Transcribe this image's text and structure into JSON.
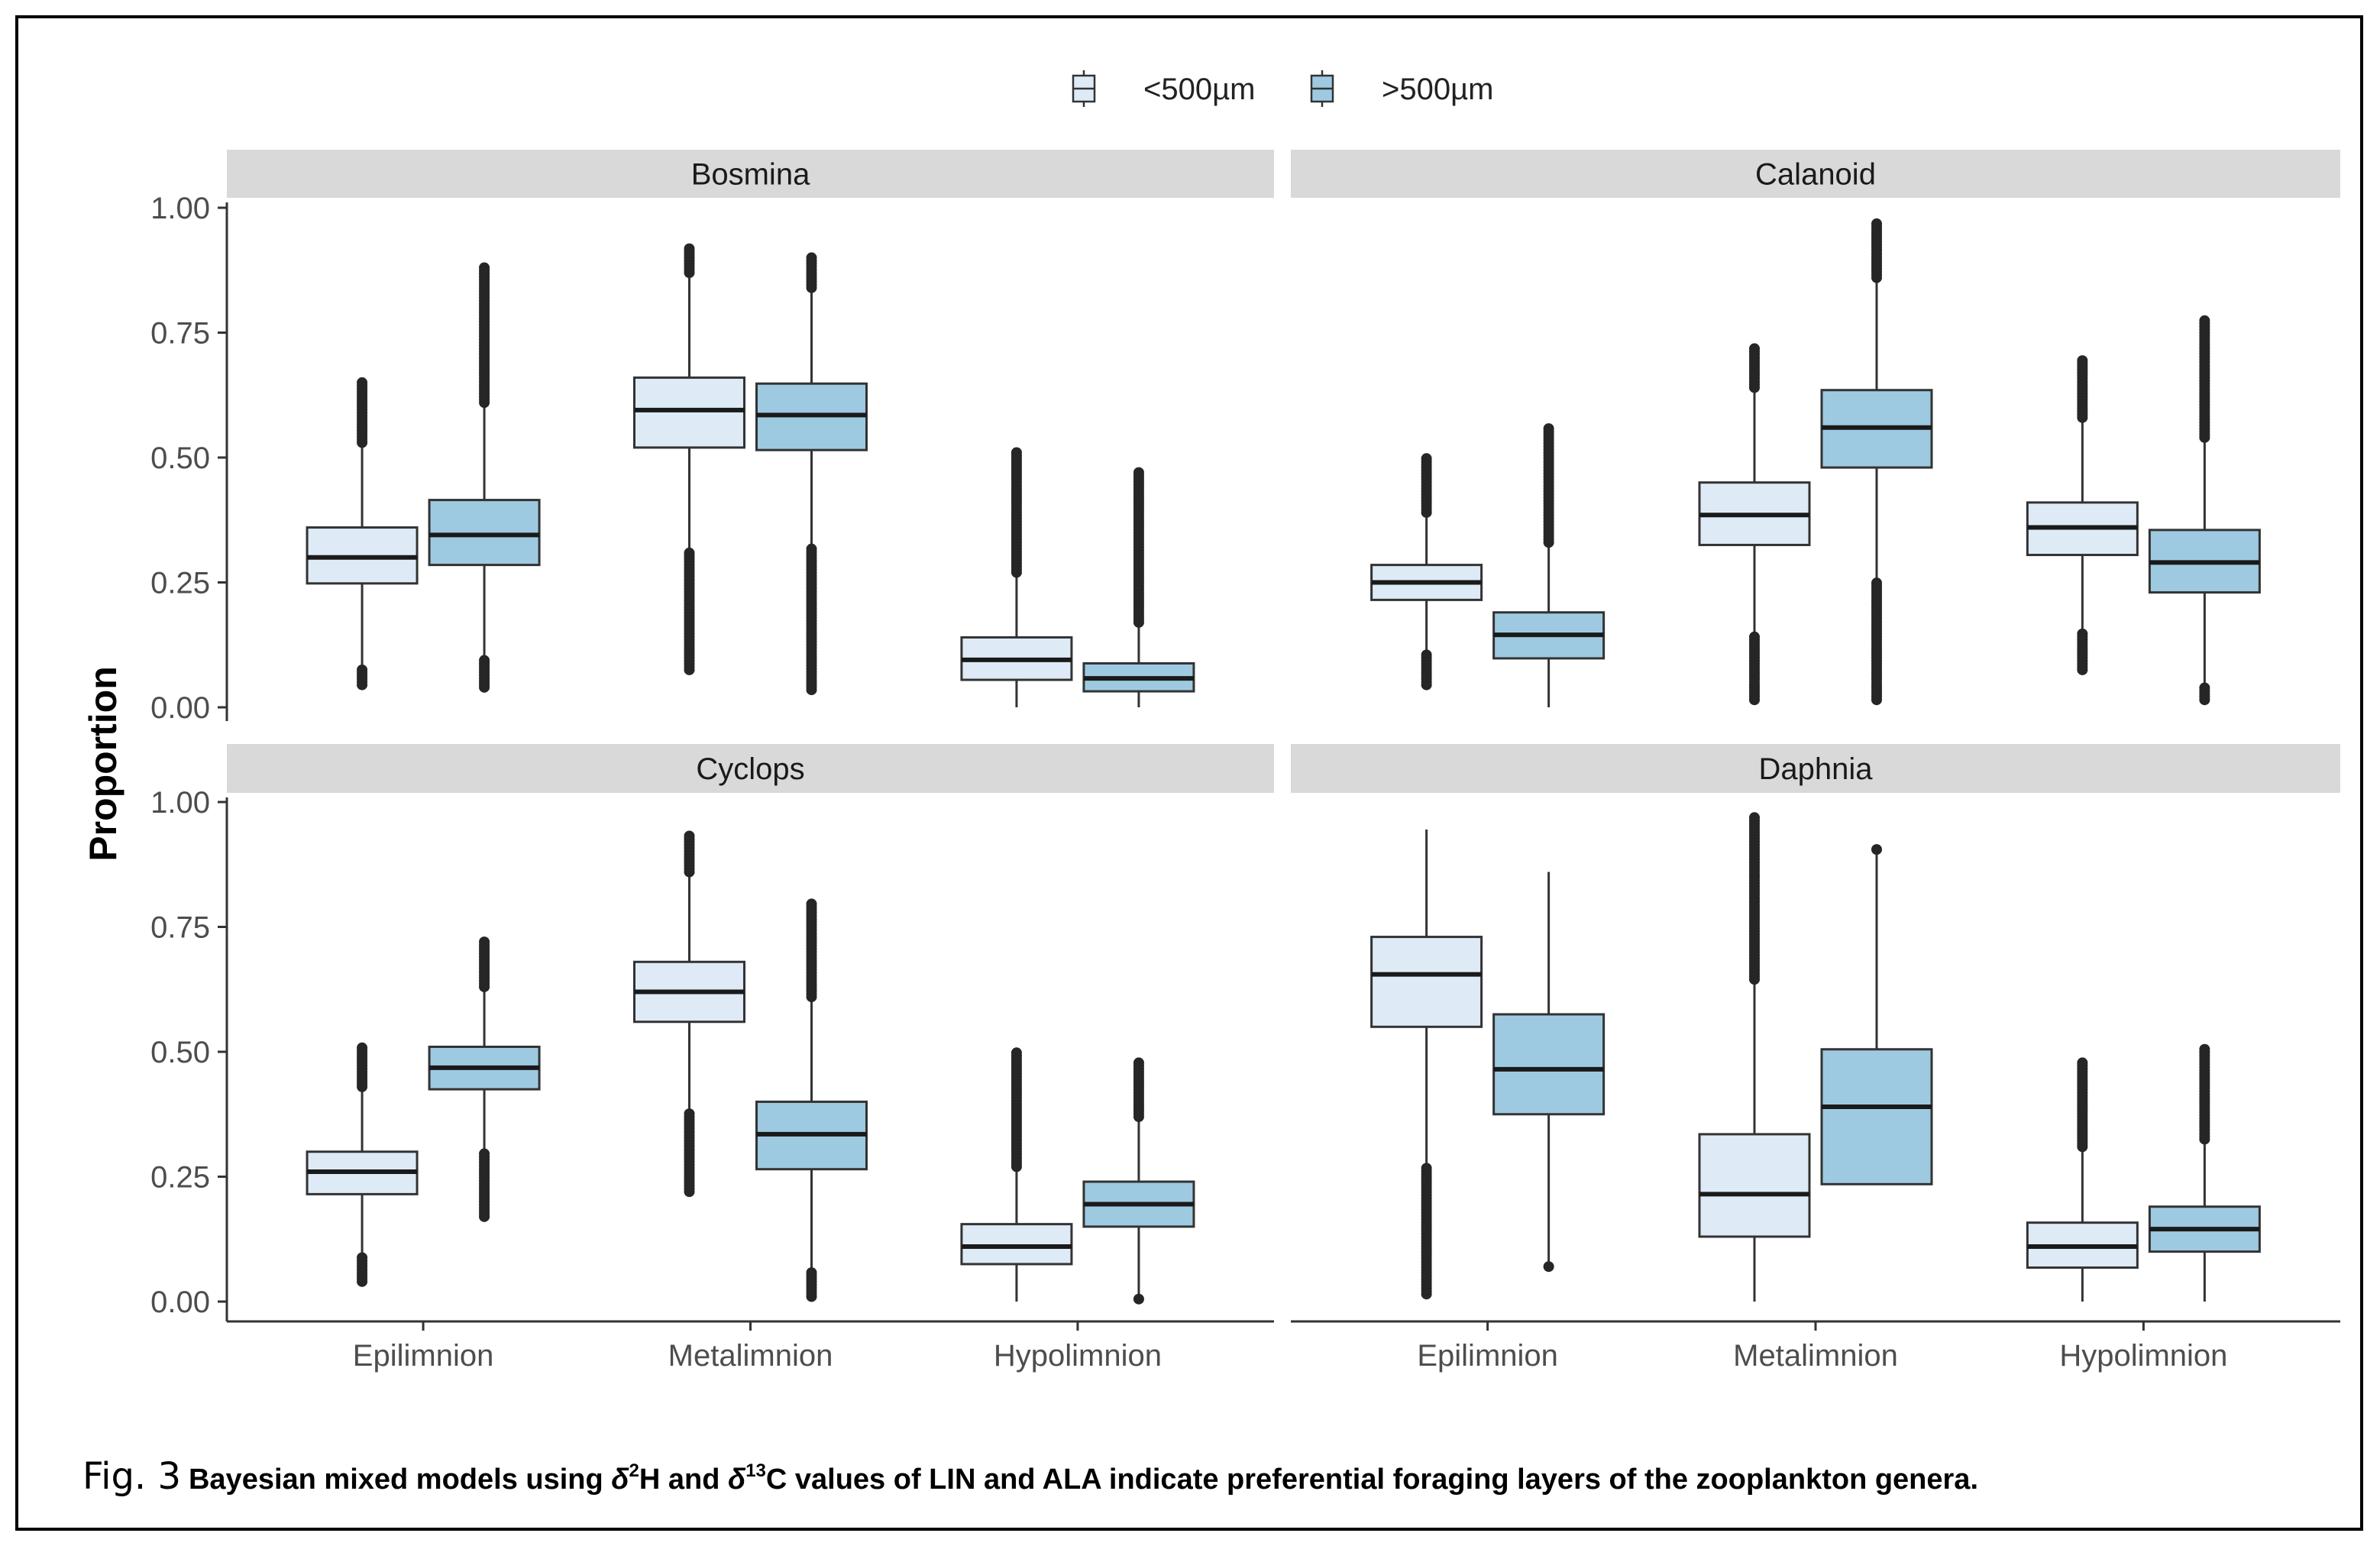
{
  "chart_data": {
    "type": "boxplot",
    "ylabel": "Proportion",
    "ylim": [
      0,
      1
    ],
    "yticks": [
      "0.00",
      "0.25",
      "0.50",
      "0.75",
      "1.00"
    ],
    "categories": [
      "Epilimnion",
      "Metalimnion",
      "Hypolimnion"
    ],
    "legend": {
      "position": "top",
      "entries": [
        {
          "label": "<500µm",
          "color": "#deebf7"
        },
        {
          "label": ">500µm",
          "color": "#9ecae1"
        }
      ]
    },
    "panels": [
      {
        "title": "Bosmina",
        "groups": [
          {
            "category": "Epilimnion",
            "series": "<500µm",
            "min": 0.045,
            "q1": 0.248,
            "median": 0.3,
            "q3": 0.36,
            "max": 0.655,
            "outliers_low": [
              0.045,
              0.08
            ],
            "outliers_high": [
              0.53,
              0.655
            ]
          },
          {
            "category": "Epilimnion",
            "series": ">500µm",
            "min": 0.04,
            "q1": 0.285,
            "median": 0.345,
            "q3": 0.415,
            "max": 0.88,
            "outliers_low": [
              0.04,
              0.095
            ],
            "outliers_high": [
              0.61,
              0.88
            ]
          },
          {
            "category": "Metalimnion",
            "series": "<500µm",
            "min": 0.075,
            "q1": 0.52,
            "median": 0.595,
            "q3": 0.66,
            "max": 0.92,
            "outliers_low": [
              0.075,
              0.135,
              0.31
            ],
            "outliers_high": [
              0.87,
              0.92
            ]
          },
          {
            "category": "Metalimnion",
            "series": ">500µm",
            "min": 0.035,
            "q1": 0.515,
            "median": 0.585,
            "q3": 0.648,
            "max": 0.905,
            "outliers_low": [
              0.035,
              0.32
            ],
            "outliers_high": [
              0.84,
              0.905
            ]
          },
          {
            "category": "Hypolimnion",
            "series": "<500µm",
            "min": 0.0,
            "q1": 0.055,
            "median": 0.095,
            "q3": 0.14,
            "max": 0.515,
            "outliers_low": [],
            "outliers_high": [
              0.27,
              0.515
            ]
          },
          {
            "category": "Hypolimnion",
            "series": ">500µm",
            "min": 0.0,
            "q1": 0.032,
            "median": 0.058,
            "q3": 0.088,
            "max": 0.47,
            "outliers_low": [],
            "outliers_high": [
              0.17,
              0.47
            ]
          }
        ]
      },
      {
        "title": "Calanoid",
        "groups": [
          {
            "category": "Epilimnion",
            "series": "<500µm",
            "min": 0.045,
            "q1": 0.215,
            "median": 0.25,
            "q3": 0.285,
            "max": 0.5,
            "outliers_low": [
              0.045,
              0.105
            ],
            "outliers_high": [
              0.39,
              0.46,
              0.5
            ]
          },
          {
            "category": "Epilimnion",
            "series": ">500µm",
            "min": 0.0,
            "q1": 0.098,
            "median": 0.145,
            "q3": 0.19,
            "max": 0.56,
            "outliers_low": [],
            "outliers_high": [
              0.33,
              0.56
            ]
          },
          {
            "category": "Metalimnion",
            "series": "<500µm",
            "min": 0.015,
            "q1": 0.325,
            "median": 0.385,
            "q3": 0.45,
            "max": 0.72,
            "outliers_low": [
              0.015,
              0.075,
              0.145
            ],
            "outliers_high": [
              0.64,
              0.72
            ]
          },
          {
            "category": "Metalimnion",
            "series": ">500µm",
            "min": 0.015,
            "q1": 0.48,
            "median": 0.56,
            "q3": 0.635,
            "max": 0.97,
            "outliers_low": [
              0.015,
              0.25
            ],
            "outliers_high": [
              0.86,
              0.93,
              0.97
            ]
          },
          {
            "category": "Hypolimnion",
            "series": "<500µm",
            "min": 0.075,
            "q1": 0.305,
            "median": 0.36,
            "q3": 0.41,
            "max": 0.695,
            "outliers_low": [
              0.075,
              0.15
            ],
            "outliers_high": [
              0.58,
              0.66,
              0.695
            ]
          },
          {
            "category": "Hypolimnion",
            "series": ">500µm",
            "min": 0.015,
            "q1": 0.23,
            "median": 0.29,
            "q3": 0.355,
            "max": 0.775,
            "outliers_low": [
              0.015,
              0.04
            ],
            "outliers_high": [
              0.54,
              0.775
            ]
          }
        ]
      },
      {
        "title": "Cyclops",
        "groups": [
          {
            "category": "Epilimnion",
            "series": "<500µm",
            "min": 0.04,
            "q1": 0.215,
            "median": 0.26,
            "q3": 0.3,
            "max": 0.51,
            "outliers_low": [
              0.04,
              0.09
            ],
            "outliers_high": [
              0.43,
              0.51
            ]
          },
          {
            "category": "Epilimnion",
            "series": ">500µm",
            "min": 0.17,
            "q1": 0.425,
            "median": 0.468,
            "q3": 0.51,
            "max": 0.72,
            "outliers_low": [
              0.17,
              0.3
            ],
            "outliers_high": [
              0.63,
              0.72
            ]
          },
          {
            "category": "Metalimnion",
            "series": "<500µm",
            "min": 0.22,
            "q1": 0.56,
            "median": 0.62,
            "q3": 0.68,
            "max": 0.935,
            "outliers_low": [
              0.22,
              0.38
            ],
            "outliers_high": [
              0.86,
              0.935
            ]
          },
          {
            "category": "Metalimnion",
            "series": ">500µm",
            "min": 0.01,
            "q1": 0.265,
            "median": 0.335,
            "q3": 0.4,
            "max": 0.8,
            "outliers_low": [
              0.01,
              0.06
            ],
            "outliers_high": [
              0.61,
              0.735,
              0.8
            ]
          },
          {
            "category": "Hypolimnion",
            "series": "<500µm",
            "min": 0.0,
            "q1": 0.075,
            "median": 0.11,
            "q3": 0.155,
            "max": 0.5,
            "outliers_low": [],
            "outliers_high": [
              0.27,
              0.5
            ]
          },
          {
            "category": "Hypolimnion",
            "series": ">500µm",
            "min": 0.005,
            "q1": 0.15,
            "median": 0.195,
            "q3": 0.24,
            "max": 0.48,
            "outliers_low": [
              0.005
            ],
            "outliers_high": [
              0.37,
              0.48
            ]
          }
        ]
      },
      {
        "title": "Daphnia",
        "groups": [
          {
            "category": "Epilimnion",
            "series": "<500µm",
            "min": 0.015,
            "q1": 0.55,
            "median": 0.655,
            "q3": 0.73,
            "max": 0.945,
            "outliers_low": [
              0.015,
              0.27
            ],
            "outliers_high": []
          },
          {
            "category": "Epilimnion",
            "series": ">500µm",
            "min": 0.07,
            "q1": 0.375,
            "median": 0.465,
            "q3": 0.575,
            "max": 0.86,
            "outliers_low": [
              0.07
            ],
            "outliers_high": []
          },
          {
            "category": "Metalimnion",
            "series": "<500µm",
            "min": 0.0,
            "q1": 0.13,
            "median": 0.215,
            "q3": 0.335,
            "max": 0.97,
            "outliers_low": [],
            "outliers_high": [
              0.645,
              0.97
            ]
          },
          {
            "category": "Metalimnion",
            "series": ">500µm",
            "min": 0.0,
            "q1": 0.235,
            "median": 0.39,
            "q3": 0.505,
            "max": 0.905,
            "outliers_low": [
              0.905
            ],
            "outliers_high": []
          },
          {
            "category": "Hypolimnion",
            "series": "<500µm",
            "min": 0.0,
            "q1": 0.068,
            "median": 0.11,
            "q3": 0.158,
            "max": 0.48,
            "outliers_low": [],
            "outliers_high": [
              0.31,
              0.48
            ]
          },
          {
            "category": "Hypolimnion",
            "series": ">500µm",
            "min": 0.0,
            "q1": 0.1,
            "median": 0.145,
            "q3": 0.19,
            "max": 0.505,
            "outliers_low": [],
            "outliers_high": [
              0.325,
              0.43,
              0.505
            ]
          }
        ]
      }
    ]
  },
  "caption": {
    "label": "Fig. 3",
    "part1": "Bayesian mixed models using ",
    "delta1": "δ",
    "sup1": "2",
    "part2": "H and ",
    "delta2": "δ",
    "sup2": "13",
    "part3": "C values of LIN and ALA indicate preferential foraging layers of the zooplankton genera."
  }
}
